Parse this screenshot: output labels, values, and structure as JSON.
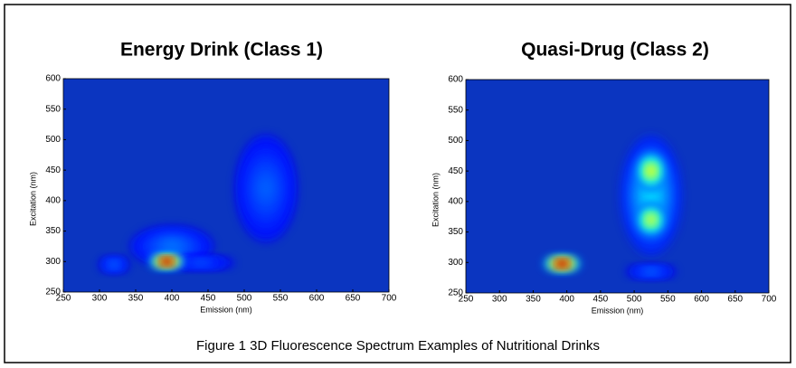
{
  "chart_data": [
    {
      "type": "heatmap",
      "title": "Energy Drink (Class 1)",
      "xlabel": "Emission (nm)",
      "ylabel": "Excitation (nm)",
      "xlim": [
        250,
        700
      ],
      "ylim": [
        250,
        600
      ],
      "xticks": [
        250,
        300,
        350,
        400,
        450,
        500,
        550,
        600,
        650,
        700
      ],
      "yticks": [
        250,
        300,
        350,
        400,
        450,
        500,
        550,
        600
      ],
      "background_color": "#0b35c0",
      "peaks": [
        {
          "emission": 530,
          "excitation": 420,
          "intensity": 0.22,
          "width": 80,
          "height": 170
        },
        {
          "emission": 400,
          "excitation": 325,
          "intensity": 0.24,
          "width": 110,
          "height": 60
        },
        {
          "emission": 320,
          "excitation": 295,
          "intensity": 0.22,
          "width": 35,
          "height": 18
        },
        {
          "emission": 440,
          "excitation": 298,
          "intensity": 0.2,
          "width": 90,
          "height": 14
        },
        {
          "emission": 393,
          "excitation": 300,
          "intensity": 1.0,
          "width": 45,
          "height": 18
        }
      ]
    },
    {
      "type": "heatmap",
      "title": "Quasi-Drug (Class 2)",
      "xlabel": "Emission (nm)",
      "ylabel": "Excitation (nm)",
      "xlim": [
        250,
        700
      ],
      "ylim": [
        250,
        600
      ],
      "xticks": [
        250,
        300,
        350,
        400,
        450,
        500,
        550,
        600,
        650,
        700
      ],
      "yticks": [
        250,
        300,
        350,
        400,
        450,
        500,
        550,
        600
      ],
      "background_color": "#0b35c0",
      "peaks": [
        {
          "emission": 525,
          "excitation": 410,
          "intensity": 0.35,
          "width": 85,
          "height": 190
        },
        {
          "emission": 525,
          "excitation": 285,
          "intensity": 0.22,
          "width": 70,
          "height": 14
        },
        {
          "emission": 393,
          "excitation": 298,
          "intensity": 1.0,
          "width": 50,
          "height": 20
        },
        {
          "emission": 525,
          "excitation": 450,
          "intensity": 0.62,
          "width": 40,
          "height": 60
        },
        {
          "emission": 525,
          "excitation": 370,
          "intensity": 0.6,
          "width": 40,
          "height": 50
        }
      ]
    }
  ],
  "caption": "Figure 1 3D Fluorescence Spectrum Examples of Nutritional Drinks"
}
